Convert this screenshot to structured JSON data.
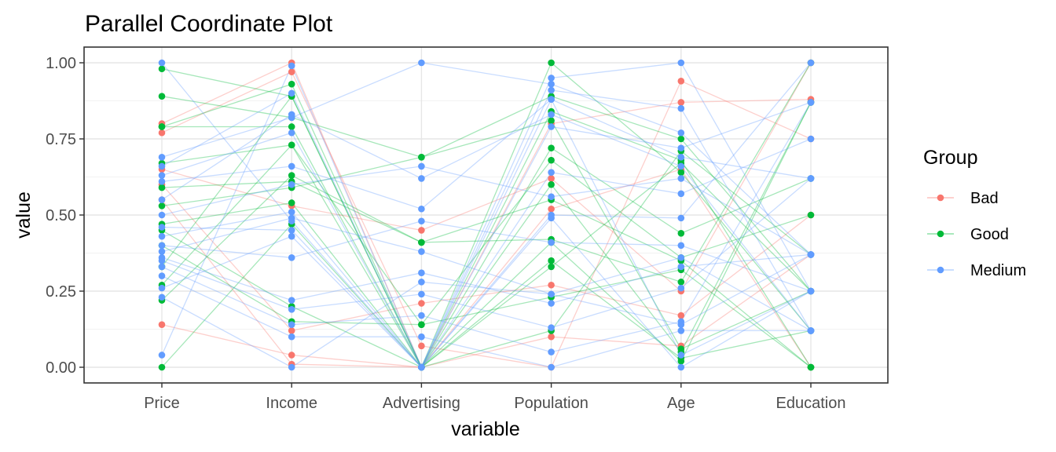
{
  "chart_data": {
    "type": "parallel-coordinates",
    "title": "Parallel Coordinate Plot",
    "xlabel": "variable",
    "ylabel": "value",
    "ylim": [
      0,
      1
    ],
    "grid": true,
    "legend_placement": "right",
    "y_ticks": [
      "0.00",
      "0.25",
      "0.50",
      "0.75",
      "1.00"
    ],
    "y_tick_values": [
      0,
      0.25,
      0.5,
      0.75,
      1.0
    ],
    "variables": [
      "Price",
      "Income",
      "Advertising",
      "Population",
      "Age",
      "Education"
    ],
    "legend": {
      "title": "Group",
      "entries": [
        {
          "name": "Bad",
          "color": "#F8766D"
        },
        {
          "name": "Good",
          "color": "#00BA38"
        },
        {
          "name": "Medium",
          "color": "#619CFF"
        }
      ]
    },
    "series": [
      {
        "name": "Bad",
        "color": "#F8766D",
        "lines": [
          [
            0.8,
            1.0,
            0.0,
            0.8,
            0.87,
            0.88
          ],
          [
            0.77,
            0.97,
            0.07,
            0.0,
            0.94,
            0.75
          ],
          [
            0.65,
            0.53,
            0.45,
            0.62,
            0.25,
            1.0
          ],
          [
            0.6,
            0.12,
            0.21,
            0.27,
            0.17,
            0.5
          ],
          [
            0.14,
            0.04,
            0.0,
            0.1,
            0.07,
            0.37
          ],
          [
            0.55,
            0.01,
            0.0,
            0.52,
            0.65,
            0.0
          ]
        ]
      },
      {
        "name": "Good",
        "color": "#00BA38",
        "lines": [
          [
            0.98,
            0.89,
            0.0,
            1.0,
            0.64,
            0.12
          ],
          [
            0.89,
            0.82,
            0.69,
            0.89,
            0.75,
            0.25
          ],
          [
            0.79,
            0.93,
            0.0,
            0.84,
            0.68,
            0.0
          ],
          [
            0.79,
            0.79,
            0.0,
            0.72,
            0.44,
            0.62
          ],
          [
            0.67,
            0.73,
            0.14,
            0.68,
            0.36,
            0.5
          ],
          [
            0.59,
            0.61,
            0.41,
            0.42,
            0.28,
            1.0
          ],
          [
            0.53,
            0.59,
            0.69,
            0.81,
            0.06,
            0.25
          ],
          [
            0.47,
            0.54,
            0.0,
            0.6,
            0.05,
            0.87
          ],
          [
            0.45,
            0.2,
            0.0,
            0.35,
            0.03,
            0.12
          ],
          [
            0.4,
            0.15,
            0.14,
            0.23,
            0.32,
            0.0
          ],
          [
            0.33,
            0.89,
            0.0,
            0.12,
            0.71,
            0.37
          ],
          [
            0.27,
            0.73,
            0.0,
            0.41,
            0.02,
            0.87
          ],
          [
            0.22,
            0.63,
            0.41,
            0.55,
            0.35,
            0.0
          ],
          [
            0.0,
            0.47,
            0.0,
            0.33,
            0.67,
            0.25
          ]
        ]
      },
      {
        "name": "Medium",
        "color": "#619CFF",
        "lines": [
          [
            1.0,
            0.48,
            0.0,
            0.91,
            0.85,
            0.12
          ],
          [
            0.69,
            0.82,
            1.0,
            0.93,
            0.77,
            0.37
          ],
          [
            0.66,
            0.9,
            0.0,
            0.95,
            1.0,
            0.25
          ],
          [
            0.63,
            0.77,
            0.0,
            0.79,
            0.72,
            0.87
          ],
          [
            0.61,
            0.66,
            0.52,
            0.88,
            0.69,
            0.62
          ],
          [
            0.55,
            0.83,
            0.62,
            0.83,
            0.66,
            0.12
          ],
          [
            0.5,
            0.6,
            0.66,
            0.56,
            0.62,
            0.37
          ],
          [
            0.46,
            0.45,
            0.0,
            0.64,
            0.57,
            0.75
          ],
          [
            0.43,
            0.51,
            0.0,
            0.5,
            0.49,
            1.0
          ],
          [
            0.4,
            0.36,
            0.48,
            0.41,
            0.4,
            0.25
          ],
          [
            0.38,
            0.49,
            0.38,
            0.24,
            0.36,
            0.12
          ],
          [
            0.36,
            0.22,
            0.31,
            0.21,
            0.33,
            0.37
          ],
          [
            0.35,
            0.19,
            0.24,
            0.13,
            0.26,
            0.62
          ],
          [
            0.33,
            0.14,
            0.17,
            0.05,
            0.15,
            0.87
          ],
          [
            0.3,
            0.1,
            0.1,
            0.0,
            0.12,
            0.12
          ],
          [
            0.26,
            0.43,
            0.0,
            0.49,
            0.0,
            0.25
          ],
          [
            0.23,
            0.0,
            0.28,
            0.24,
            0.14,
            0.37
          ],
          [
            0.04,
            0.99,
            0.0,
            0.88,
            0.04,
            0.25
          ]
        ]
      }
    ]
  }
}
